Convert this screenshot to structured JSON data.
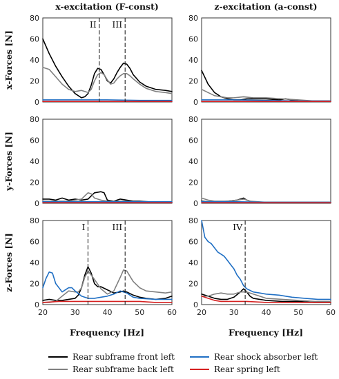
{
  "column_titles": [
    "x-excitation (F-const)",
    "z-excitation (a-const)"
  ],
  "row_labels": [
    "x-Forces [N]",
    "y-Forces [N]",
    "z-Forces [N]"
  ],
  "xlabel": "Frequency [Hz]",
  "legend": [
    {
      "label": "Rear subframe front left",
      "color": "#000000"
    },
    {
      "label": "Rear subframe back left",
      "color": "#808080"
    },
    {
      "label": "Rear shock absorber left",
      "color": "#1f6fc4"
    },
    {
      "label": "Rear spring left",
      "color": "#d62020"
    }
  ],
  "chart_data": [
    {
      "type": "line",
      "panel": "x-excitation x-forces",
      "xlim": [
        20,
        60
      ],
      "ylim": [
        0,
        80
      ],
      "xticks": [
        20,
        30,
        40,
        50,
        60
      ],
      "yticks": [
        0,
        20,
        40,
        60,
        80
      ],
      "markers": [
        {
          "x": 37.5,
          "label": "II"
        },
        {
          "x": 45.5,
          "label": "III"
        }
      ],
      "series": [
        {
          "name": "Rear subframe front left",
          "color": "#000000",
          "x": [
            20,
            22,
            24,
            26,
            28,
            30,
            32,
            33,
            34,
            35,
            36,
            37,
            38,
            39,
            40,
            41,
            42,
            43,
            44,
            45,
            46,
            47,
            48,
            50,
            52,
            55,
            58,
            60
          ],
          "y": [
            60,
            46,
            34,
            24,
            15,
            8,
            4,
            5,
            8,
            16,
            27,
            32,
            31,
            26,
            20,
            18,
            22,
            28,
            33,
            37,
            36,
            32,
            26,
            19,
            15,
            12,
            11,
            10
          ]
        },
        {
          "name": "Rear subframe back left",
          "color": "#808080",
          "x": [
            20,
            22,
            24,
            26,
            28,
            30,
            32,
            33,
            34,
            35,
            36,
            37,
            38,
            39,
            40,
            41,
            42,
            43,
            44,
            45,
            46,
            47,
            48,
            50,
            52,
            55,
            58,
            60
          ],
          "y": [
            33,
            31,
            24,
            17,
            12,
            10,
            11,
            10,
            9,
            12,
            20,
            26,
            28,
            26,
            21,
            17,
            18,
            22,
            25,
            27,
            27,
            25,
            22,
            17,
            13,
            10,
            9,
            8
          ]
        },
        {
          "name": "Rear shock absorber left",
          "color": "#1f6fc4",
          "x": [
            20,
            30,
            40,
            50,
            60
          ],
          "y": [
            2,
            2,
            2,
            1.5,
            1.5
          ]
        },
        {
          "name": "Rear spring left",
          "color": "#d62020",
          "x": [
            20,
            30,
            40,
            50,
            60
          ],
          "y": [
            0.5,
            0.5,
            0.5,
            0.5,
            0.5
          ]
        }
      ]
    },
    {
      "type": "line",
      "panel": "z-excitation x-forces",
      "xlim": [
        20,
        60
      ],
      "ylim": [
        0,
        80
      ],
      "xticks": [
        20,
        30,
        40,
        50,
        60
      ],
      "yticks": [
        0,
        20,
        40,
        60,
        80
      ],
      "markers": [],
      "series": [
        {
          "name": "Rear subframe front left",
          "color": "#000000",
          "x": [
            20,
            22,
            24,
            26,
            28,
            30,
            32,
            34,
            36,
            40,
            44,
            46,
            48,
            50,
            55,
            60
          ],
          "y": [
            30,
            17,
            9,
            5,
            3,
            2,
            2,
            3,
            3,
            3,
            2,
            3,
            2,
            1,
            1,
            1
          ]
        },
        {
          "name": "Rear subframe back left",
          "color": "#808080",
          "x": [
            20,
            22,
            24,
            26,
            28,
            30,
            33,
            36,
            40,
            45,
            50,
            55,
            60
          ],
          "y": [
            12,
            9,
            6,
            5,
            4,
            4,
            5,
            4,
            4,
            3,
            2,
            1,
            1
          ]
        },
        {
          "name": "Rear shock absorber left",
          "color": "#1f6fc4",
          "x": [
            20,
            30,
            40,
            50,
            60
          ],
          "y": [
            2,
            2,
            1.5,
            1,
            1
          ]
        },
        {
          "name": "Rear spring left",
          "color": "#d62020",
          "x": [
            20,
            30,
            40,
            50,
            60
          ],
          "y": [
            0.5,
            0.5,
            0.5,
            0.5,
            0.5
          ]
        }
      ]
    },
    {
      "type": "line",
      "panel": "x-excitation y-forces",
      "xlim": [
        20,
        60
      ],
      "ylim": [
        0,
        80
      ],
      "xticks": [
        20,
        30,
        40,
        50,
        60
      ],
      "yticks": [
        0,
        20,
        40,
        60,
        80
      ],
      "markers": [],
      "series": [
        {
          "name": "Rear subframe front left",
          "color": "#000000",
          "x": [
            20,
            22,
            24,
            26,
            28,
            30,
            32,
            34,
            35,
            36,
            38,
            39,
            40,
            42,
            44,
            46,
            48,
            50,
            55,
            60
          ],
          "y": [
            4,
            4,
            3,
            5,
            3,
            4,
            3,
            4,
            7,
            10,
            11,
            10,
            3,
            2,
            4,
            3,
            2,
            2,
            1,
            1
          ]
        },
        {
          "name": "Rear subframe back left",
          "color": "#808080",
          "x": [
            20,
            24,
            28,
            30,
            32,
            33,
            34,
            35,
            36,
            38,
            40,
            42,
            44,
            46,
            50,
            55,
            60
          ],
          "y": [
            2,
            2,
            2,
            3,
            4,
            7,
            10,
            9,
            5,
            3,
            2,
            2,
            2,
            2,
            1,
            1,
            1
          ]
        },
        {
          "name": "Rear shock absorber left",
          "color": "#1f6fc4",
          "x": [
            20,
            30,
            40,
            50,
            60
          ],
          "y": [
            1.5,
            1.5,
            1.5,
            1.5,
            1.5
          ]
        },
        {
          "name": "Rear spring left",
          "color": "#d62020",
          "x": [
            20,
            30,
            40,
            50,
            60
          ],
          "y": [
            0.5,
            0.5,
            0.5,
            0.5,
            0.5
          ]
        }
      ]
    },
    {
      "type": "line",
      "panel": "z-excitation y-forces",
      "xlim": [
        20,
        60
      ],
      "ylim": [
        0,
        80
      ],
      "xticks": [
        20,
        30,
        40,
        50,
        60
      ],
      "yticks": [
        0,
        20,
        40,
        60,
        80
      ],
      "markers": [],
      "series": [
        {
          "name": "Rear subframe front left",
          "color": "#000000",
          "x": [
            20,
            24,
            28,
            31,
            33,
            34,
            36,
            40,
            50,
            60
          ],
          "y": [
            2,
            1,
            2,
            3,
            5,
            3,
            1,
            1,
            1,
            1
          ]
        },
        {
          "name": "Rear subframe back left",
          "color": "#808080",
          "x": [
            20,
            22,
            24,
            28,
            31,
            33,
            35,
            40,
            50,
            60
          ],
          "y": [
            5,
            3,
            2,
            2,
            3,
            4,
            2,
            1,
            1,
            1
          ]
        },
        {
          "name": "Rear shock absorber left",
          "color": "#1f6fc4",
          "x": [
            20,
            30,
            40,
            50,
            60
          ],
          "y": [
            1.5,
            1.5,
            1,
            1,
            1
          ]
        },
        {
          "name": "Rear spring left",
          "color": "#d62020",
          "x": [
            20,
            30,
            40,
            50,
            60
          ],
          "y": [
            0.5,
            0.5,
            0.5,
            0.5,
            0.5
          ]
        }
      ]
    },
    {
      "type": "line",
      "panel": "x-excitation z-forces",
      "xlim": [
        20,
        60
      ],
      "ylim": [
        0,
        80
      ],
      "xticks": [
        20,
        30,
        40,
        50,
        60
      ],
      "yticks": [
        0,
        20,
        40,
        60,
        80
      ],
      "markers": [
        {
          "x": 34,
          "label": "I"
        },
        {
          "x": 45.5,
          "label": "III"
        }
      ],
      "series": [
        {
          "name": "Rear subframe front left",
          "color": "#000000",
          "x": [
            20,
            22,
            24,
            26,
            28,
            30,
            31,
            32,
            33,
            34,
            35,
            36,
            37,
            38,
            40,
            42,
            44,
            45,
            46,
            48,
            50,
            52,
            55,
            58,
            60
          ],
          "y": [
            4,
            5,
            4,
            4,
            5,
            6,
            9,
            16,
            28,
            36,
            30,
            20,
            17,
            17,
            14,
            11,
            12,
            13,
            12,
            9,
            7,
            6,
            5,
            6,
            8
          ]
        },
        {
          "name": "Rear subframe back left",
          "color": "#808080",
          "x": [
            20,
            22,
            24,
            26,
            28,
            30,
            31,
            32,
            33,
            34,
            36,
            38,
            40,
            42,
            44,
            45,
            46,
            47,
            48,
            50,
            52,
            55,
            58,
            60
          ],
          "y": [
            2,
            2,
            3,
            8,
            13,
            12,
            12,
            16,
            26,
            32,
            24,
            15,
            10,
            13,
            26,
            33,
            32,
            27,
            22,
            16,
            13,
            12,
            11,
            12
          ]
        },
        {
          "name": "Rear shock absorber left",
          "color": "#1f6fc4",
          "x": [
            20,
            21,
            22,
            23,
            24,
            26,
            28,
            29,
            30,
            32,
            34,
            36,
            38,
            40,
            42,
            44,
            46,
            48,
            50,
            55,
            60
          ],
          "y": [
            16,
            25,
            31,
            30,
            20,
            12,
            16,
            16,
            13,
            8,
            6,
            6,
            7,
            8,
            10,
            13,
            11,
            7,
            6,
            5,
            5
          ]
        },
        {
          "name": "Rear spring left",
          "color": "#d62020",
          "x": [
            20,
            25,
            30,
            35,
            40,
            45,
            50,
            55,
            60
          ],
          "y": [
            2,
            3,
            3,
            3,
            3,
            3,
            3,
            2,
            2
          ]
        }
      ]
    },
    {
      "type": "line",
      "panel": "z-excitation z-forces",
      "xlim": [
        20,
        60
      ],
      "ylim": [
        0,
        80
      ],
      "xticks": [
        20,
        30,
        40,
        50,
        60
      ],
      "yticks": [
        0,
        20,
        40,
        60,
        80
      ],
      "markers": [
        {
          "x": 33.5,
          "label": "IV"
        }
      ],
      "series": [
        {
          "name": "Rear subframe front left",
          "color": "#000000",
          "x": [
            20,
            22,
            24,
            26,
            28,
            30,
            32,
            33,
            34,
            35,
            36,
            38,
            40,
            45,
            50,
            55,
            60
          ],
          "y": [
            10,
            8,
            6,
            5,
            5,
            7,
            12,
            15,
            12,
            8,
            6,
            5,
            4,
            3,
            3,
            2,
            2
          ]
        },
        {
          "name": "Rear subframe back left",
          "color": "#808080",
          "x": [
            20,
            22,
            24,
            26,
            28,
            30,
            32,
            34,
            36,
            38,
            40,
            45,
            50,
            55,
            60
          ],
          "y": [
            8,
            8,
            10,
            11,
            10,
            10,
            12,
            12,
            10,
            8,
            6,
            5,
            4,
            3,
            3
          ]
        },
        {
          "name": "Rear shock absorber left",
          "color": "#1f6fc4",
          "x": [
            20,
            21,
            22,
            23,
            24,
            25,
            26,
            27,
            28,
            29,
            30,
            31,
            32,
            33,
            34,
            36,
            38,
            40,
            44,
            48,
            52,
            56,
            60
          ],
          "y": [
            80,
            64,
            60,
            58,
            54,
            50,
            48,
            46,
            42,
            38,
            34,
            28,
            24,
            18,
            15,
            12,
            11,
            10,
            9,
            7,
            6,
            5,
            5
          ]
        },
        {
          "name": "Rear spring left",
          "color": "#d62020",
          "x": [
            20,
            22,
            24,
            26,
            28,
            30,
            34,
            40,
            50,
            60
          ],
          "y": [
            8,
            6,
            4,
            3,
            3,
            3,
            3,
            2,
            2,
            2
          ]
        }
      ]
    }
  ]
}
